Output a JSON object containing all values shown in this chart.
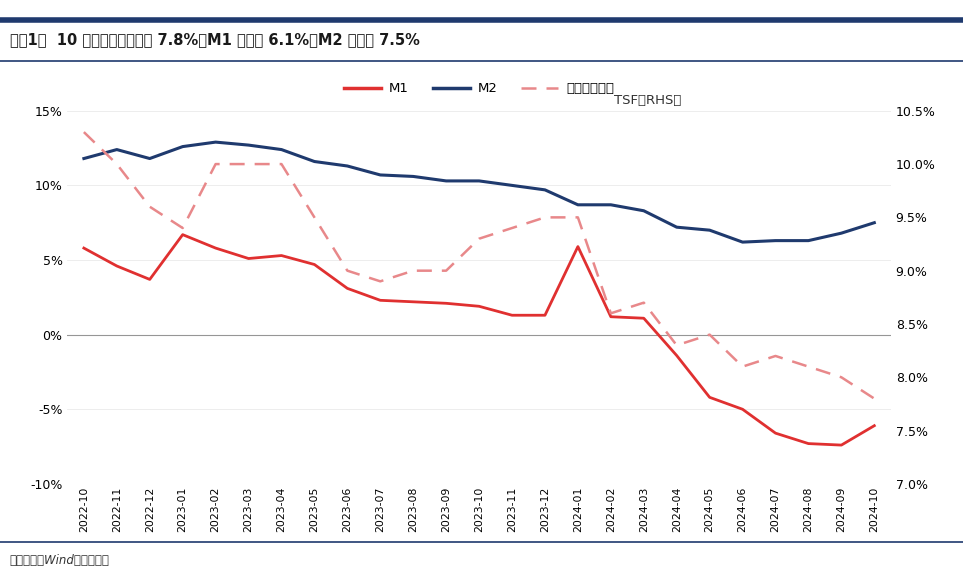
{
  "title": "图袆1：  10 月社融存量同比增 7.8%、M1 同比减 6.1%、M2 同比增 7.5%",
  "source": "资料来源：Wind，中信建投",
  "legend_m1": "M1",
  "legend_m2": "M2",
  "legend_tsf_line1": "社融（右轴）",
  "legend_tsf_line2": "TSF（RHS）",
  "x_labels": [
    "2022-10",
    "2022-11",
    "2022-12",
    "2023-01",
    "2023-02",
    "2023-03",
    "2023-04",
    "2023-05",
    "2023-06",
    "2023-07",
    "2023-08",
    "2023-09",
    "2023-10",
    "2023-11",
    "2023-12",
    "2024-01",
    "2024-02",
    "2024-03",
    "2024-04",
    "2024-05",
    "2024-06",
    "2024-07",
    "2024-08",
    "2024-09",
    "2024-10"
  ],
  "M1": [
    5.8,
    4.6,
    3.7,
    6.7,
    5.8,
    5.1,
    5.3,
    4.7,
    3.1,
    2.3,
    2.2,
    2.1,
    1.9,
    1.3,
    1.3,
    5.9,
    1.2,
    1.1,
    -1.4,
    -4.2,
    -5.0,
    -6.6,
    -7.3,
    -7.4,
    -6.1
  ],
  "M2": [
    11.8,
    12.4,
    11.8,
    12.6,
    12.9,
    12.7,
    12.4,
    11.6,
    11.3,
    10.7,
    10.6,
    10.3,
    10.3,
    10.0,
    9.7,
    8.7,
    8.7,
    8.3,
    7.2,
    7.0,
    6.2,
    6.3,
    6.3,
    6.8,
    7.5
  ],
  "TSF": [
    10.3,
    10.0,
    9.6,
    9.4,
    10.0,
    10.0,
    10.0,
    9.5,
    9.0,
    8.9,
    9.0,
    9.0,
    9.3,
    9.4,
    9.5,
    9.5,
    8.6,
    8.7,
    8.3,
    8.4,
    8.1,
    8.2,
    8.1,
    8.0,
    7.8
  ],
  "M1_color": "#e03030",
  "M2_color": "#1f3a6e",
  "TSF_color": "#e8888a",
  "ylim_left": [
    -10,
    15
  ],
  "ylim_right": [
    7.0,
    10.5
  ],
  "yticks_left": [
    -10,
    -5,
    0,
    5,
    10,
    15
  ],
  "yticks_right": [
    7.0,
    7.5,
    8.0,
    8.5,
    9.0,
    9.5,
    10.0,
    10.5
  ],
  "background_color": "#ffffff",
  "header_bar_color": "#1f3a6e"
}
